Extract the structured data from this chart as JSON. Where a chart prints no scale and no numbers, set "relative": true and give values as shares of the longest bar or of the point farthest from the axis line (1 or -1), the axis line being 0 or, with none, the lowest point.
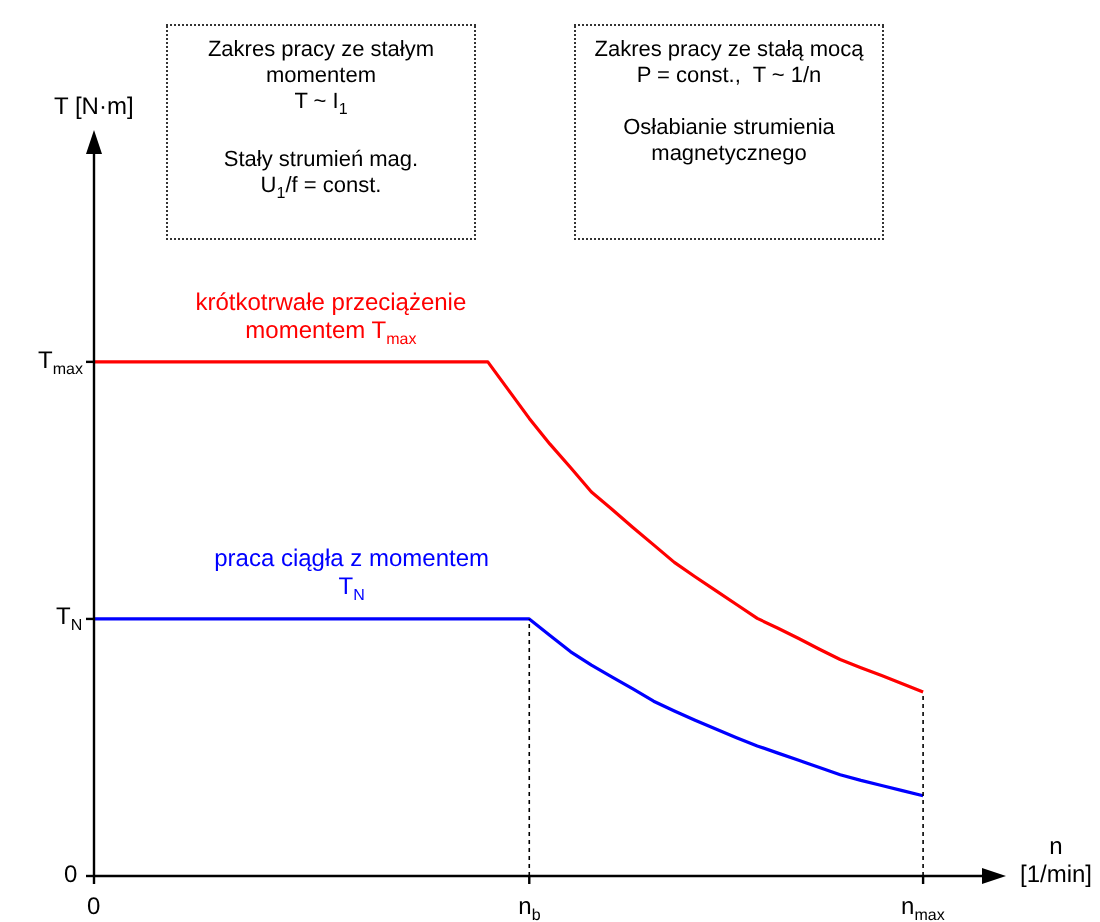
{
  "chart_data": {
    "type": "line",
    "relative": true,
    "xlabel": "n [1/min]",
    "categories": [
      "0",
      null,
      null,
      null,
      null,
      null,
      null,
      null,
      null,
      null,
      null,
      null,
      null,
      null,
      null,
      null,
      null,
      null,
      null,
      null,
      null,
      "n$_{b}$",
      null,
      null,
      null,
      null,
      null,
      null,
      null,
      null,
      null,
      null,
      null,
      null,
      null,
      null,
      null,
      null,
      null,
      null,
      "n$_{max}$",
      null,
      null,
      null,
      null
    ],
    "series": [
      {
        "name": "krótkotrwałe przeciążenie momentem T$_{max}$",
        "color": "#ff0000",
        "values": [
          1,
          1,
          1,
          1,
          1,
          1,
          1,
          1,
          1,
          1,
          1,
          1,
          1,
          1,
          1,
          1,
          1,
          1,
          1,
          1,
          0.945,
          0.89,
          0.84,
          0.794,
          0.747,
          0.713,
          0.678,
          0.644,
          0.61,
          0.582,
          0.555,
          0.528,
          0.501,
          0.482,
          0.462,
          0.441,
          0.421,
          0.405,
          0.39,
          0.374,
          0.358,
          null,
          null,
          null,
          null
        ]
      },
      {
        "name": "praca ciągła z momentem T$_{N}$",
        "color": "#0000ff",
        "values": [
          0.5,
          0.5,
          0.5,
          0.5,
          0.5,
          0.5,
          0.5,
          0.5,
          0.5,
          0.5,
          0.5,
          0.5,
          0.5,
          0.5,
          0.5,
          0.5,
          0.5,
          0.5,
          0.5,
          0.5,
          0.5,
          0.5,
          0.468,
          0.436,
          0.41,
          0.387,
          0.364,
          0.34,
          0.321,
          0.303,
          0.286,
          0.269,
          0.253,
          0.239,
          0.225,
          0.211,
          0.197,
          0.186,
          0.176,
          0.166,
          0.156,
          null,
          null,
          null,
          null
        ]
      }
    ],
    "ref_lines": [
      {
        "axis": "x",
        "value": "n$_{b}$",
        "line_style": "dotted",
        "color": "#000000"
      },
      {
        "axis": "x",
        "value": "n$_{max}$",
        "line_style": "dotted",
        "color": "#000000"
      }
    ],
    "annotations": [
      "Zakres pracy ze stałym momentem\nT ~ I$_{1}$\n\nStały strumień mag.\nU$_{1}$/f = const.",
      "Zakres pracy ze stałą mocą\nP = const.,  T ~ 1/n\n\nOsłabianie strumienia magnetycznego",
      "0",
      "T [N·m]",
      {
        "text": "T$_{max}$",
        "x": "0",
        "y": 1
      },
      {
        "text": "T$_{N}$",
        "x": "0",
        "y": 0.5
      }
    ],
    "legend": false,
    "marker": "none",
    "line_style": "solid"
  }
}
